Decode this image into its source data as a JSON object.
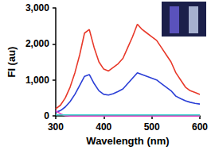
{
  "chart_data": {
    "type": "line",
    "x_label": "Wavelength (nm)",
    "y_label": "FI (au)",
    "x": [
      300,
      310,
      320,
      330,
      340,
      350,
      360,
      370,
      380,
      390,
      400,
      410,
      420,
      430,
      440,
      450,
      460,
      470,
      480,
      490,
      500,
      510,
      520,
      530,
      540,
      550,
      560,
      570,
      580,
      590,
      600
    ],
    "series": [
      {
        "color": "#e8392a",
        "values": [
          200,
          300,
          500,
          800,
          1200,
          1700,
          2300,
          2400,
          1900,
          1500,
          1300,
          1250,
          1350,
          1450,
          1600,
          1900,
          2200,
          2550,
          2400,
          2300,
          2200,
          2100,
          1900,
          1700,
          1500,
          1200,
          1000,
          800,
          700,
          650,
          600
        ]
      },
      {
        "color": "#2b3fd6",
        "values": [
          100,
          150,
          250,
          400,
          600,
          850,
          1100,
          1150,
          900,
          700,
          600,
          580,
          620,
          680,
          750,
          900,
          1050,
          1200,
          1150,
          1100,
          1050,
          1000,
          900,
          800,
          700,
          550,
          480,
          420,
          380,
          350,
          330
        ]
      },
      {
        "color": "#e040c0",
        "values": [
          150,
          60,
          10,
          0,
          0,
          0,
          0,
          0,
          0,
          0,
          0,
          0,
          0,
          0,
          0,
          0,
          0,
          0,
          0,
          0,
          0,
          0,
          0,
          0,
          0,
          0,
          0,
          0,
          0,
          0,
          0
        ]
      },
      {
        "color": "#40d0d0",
        "values": [
          30,
          30,
          30,
          30,
          30,
          30,
          30,
          30,
          30,
          30,
          30,
          30,
          30,
          30,
          30,
          30,
          30,
          30,
          30,
          30,
          30,
          30,
          30,
          30,
          30,
          30,
          30,
          30,
          30,
          30,
          30
        ]
      }
    ],
    "xlim": [
      300,
      600
    ],
    "xticks": [
      300,
      400,
      500,
      600
    ],
    "ylim": [
      0,
      3000
    ],
    "yticks": [
      0,
      1000,
      2000,
      3000
    ],
    "grid": false
  }
}
